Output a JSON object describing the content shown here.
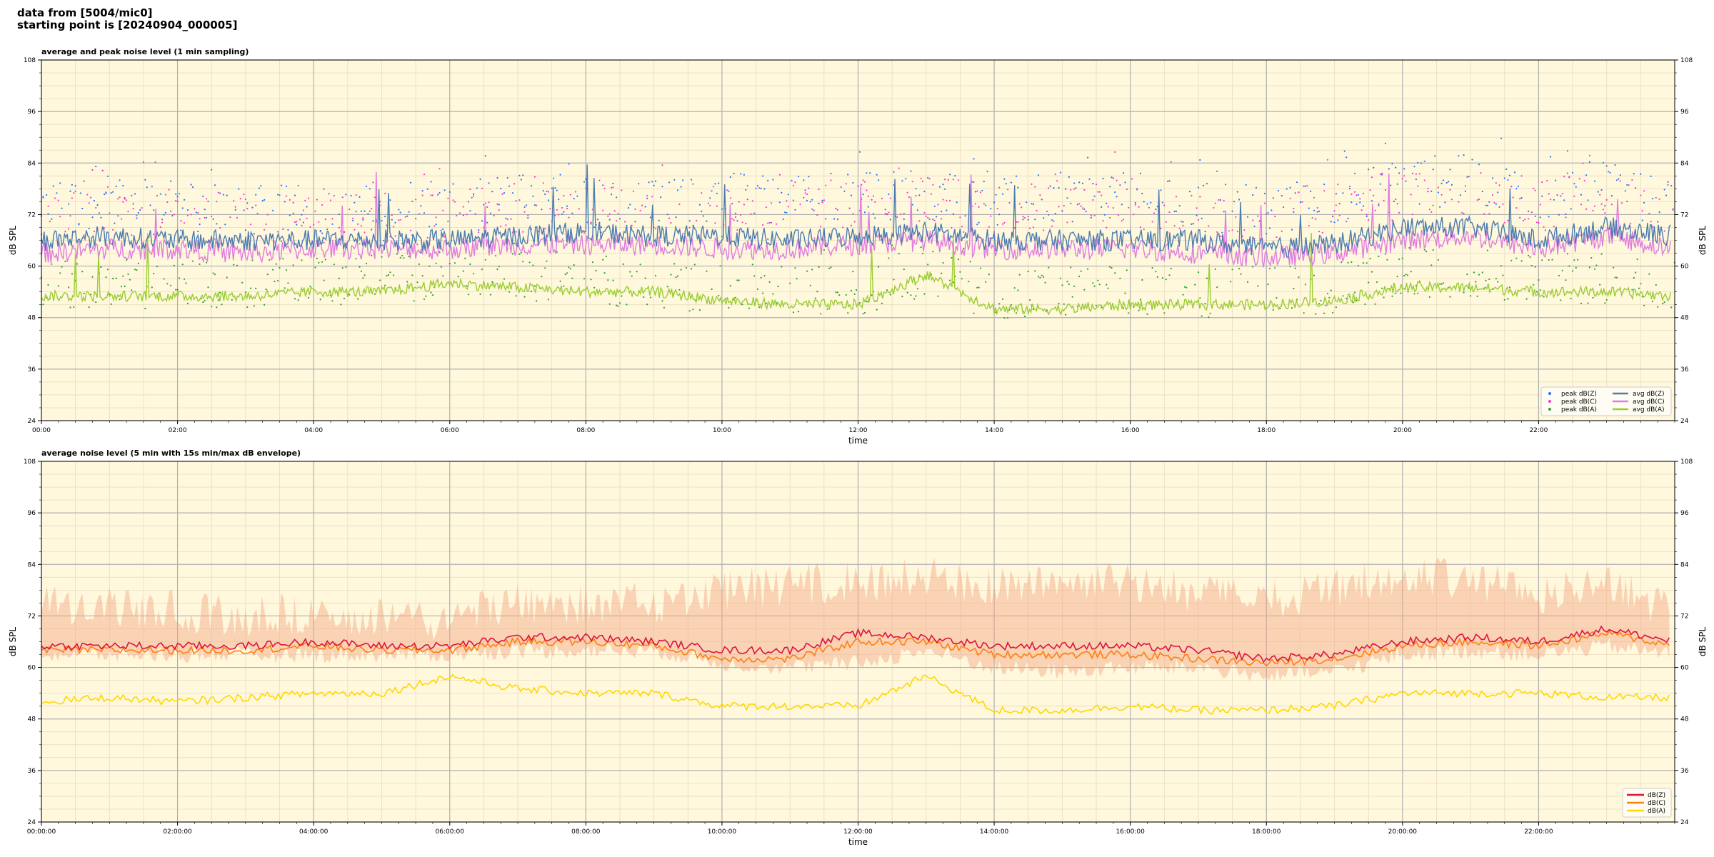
{
  "header": {
    "line1": "data from [5004/mic0]",
    "line2": "starting point is [20240904_000005]"
  },
  "colors": {
    "background": "#fff8dc",
    "peak_z": "#1f77ff",
    "peak_c": "#ff33cc",
    "peak_a": "#2ca02c",
    "avg_z": "#4a7bb0",
    "avg_c": "#e07be0",
    "avg_a": "#9acd32",
    "dbz": "#dc143c",
    "dbc": "#ff7f0e",
    "dba": "#ffd700",
    "envelope": "#f4a582"
  },
  "chart_data": [
    {
      "type": "line",
      "title": "average and peak noise level (1 min sampling)",
      "xlabel": "time",
      "ylabel": "dB SPL",
      "ylabel_right": "dB SPL",
      "xlim": [
        0,
        24
      ],
      "ylim": [
        24,
        108
      ],
      "yticks": [
        24,
        36,
        48,
        60,
        72,
        84,
        96,
        108
      ],
      "xticks": [
        0,
        2,
        4,
        6,
        8,
        10,
        12,
        14,
        16,
        18,
        20,
        22
      ],
      "xticklabels": [
        "00:00",
        "02:00",
        "04:00",
        "06:00",
        "08:00",
        "10:00",
        "12:00",
        "14:00",
        "16:00",
        "18:00",
        "20:00",
        "22:00"
      ],
      "grid": true,
      "legend_position": "bottom-right",
      "legend": [
        "peak dB(Z)",
        "peak dB(C)",
        "peak dB(A)",
        "avg dB(Z)",
        "avg dB(C)",
        "avg dB(A)"
      ],
      "series": [
        {
          "name": "avg dB(Z)",
          "kind": "line",
          "color": "#4a7bb0",
          "x": [
            0,
            1,
            2,
            3,
            4,
            5,
            6,
            7,
            8,
            9,
            10,
            11,
            12,
            13,
            14,
            15,
            16,
            17,
            18,
            19,
            20,
            21,
            22,
            23,
            24
          ],
          "y": [
            66,
            67,
            66,
            66,
            66,
            66,
            66,
            67,
            68,
            67,
            67,
            66,
            67,
            68,
            66,
            66,
            66,
            66,
            64,
            65,
            69,
            69,
            66,
            69,
            67
          ]
        },
        {
          "name": "avg dB(C)",
          "kind": "line",
          "color": "#e07be0",
          "x": [
            0,
            1,
            2,
            3,
            4,
            5,
            6,
            7,
            8,
            9,
            10,
            11,
            12,
            13,
            14,
            15,
            16,
            17,
            18,
            19,
            20,
            21,
            22,
            23,
            24
          ],
          "y": [
            63,
            64,
            64,
            63,
            64,
            64,
            64,
            65,
            65,
            65,
            64,
            64,
            65,
            66,
            64,
            64,
            64,
            63,
            62,
            63,
            66,
            67,
            64,
            67,
            64
          ]
        },
        {
          "name": "avg dB(A)",
          "kind": "line",
          "color": "#9acd32",
          "x": [
            0,
            1,
            2,
            3,
            4,
            5,
            6,
            7,
            8,
            9,
            10,
            11,
            12,
            13,
            14,
            15,
            16,
            17,
            18,
            19,
            20,
            21,
            22,
            23,
            24
          ],
          "y": [
            53,
            53,
            53,
            53,
            54,
            54,
            56,
            55,
            54,
            54,
            52,
            51,
            51,
            58,
            50,
            50,
            51,
            51,
            51,
            52,
            55,
            55,
            54,
            54,
            53
          ]
        },
        {
          "name": "peak dB(Z)",
          "kind": "scatter",
          "color": "#1f77ff",
          "x": [
            0,
            1,
            2,
            3,
            4,
            5,
            6,
            7,
            8,
            9,
            10,
            11,
            12,
            13,
            14,
            15,
            16,
            17,
            18,
            19,
            20,
            21,
            22,
            23,
            24
          ],
          "y": [
            74,
            75,
            74,
            73,
            73,
            73,
            73,
            76,
            75,
            74,
            76,
            76,
            76,
            77,
            75,
            76,
            77,
            74,
            73,
            76,
            79,
            80,
            76,
            79,
            73
          ]
        },
        {
          "name": "peak dB(C)",
          "kind": "scatter",
          "color": "#ff33cc",
          "x": [
            0,
            1,
            2,
            3,
            4,
            5,
            6,
            7,
            8,
            9,
            10,
            11,
            12,
            13,
            14,
            15,
            16,
            17,
            18,
            19,
            20,
            21,
            22,
            23,
            24
          ],
          "y": [
            72,
            73,
            72,
            71,
            71,
            71,
            71,
            74,
            73,
            72,
            74,
            74,
            74,
            75,
            73,
            74,
            75,
            72,
            71,
            74,
            77,
            78,
            74,
            77,
            71
          ]
        },
        {
          "name": "peak dB(A)",
          "kind": "scatter",
          "color": "#2ca02c",
          "x": [
            0,
            1,
            2,
            3,
            4,
            5,
            6,
            7,
            8,
            9,
            10,
            11,
            12,
            13,
            14,
            15,
            16,
            17,
            18,
            19,
            20,
            21,
            22,
            23,
            24
          ],
          "y": [
            56,
            56,
            56,
            56,
            57,
            57,
            58,
            58,
            57,
            56,
            55,
            54,
            54,
            59,
            53,
            54,
            54,
            54,
            54,
            55,
            58,
            58,
            57,
            57,
            56
          ]
        }
      ]
    },
    {
      "type": "line",
      "title": "average noise level (5 min with 15s min/max dB envelope)",
      "xlabel": "time",
      "ylabel": "dB SPL",
      "ylabel_right": "dB SPL",
      "xlim": [
        0,
        24
      ],
      "ylim": [
        24,
        108
      ],
      "yticks": [
        24,
        36,
        48,
        60,
        72,
        84,
        96,
        108
      ],
      "xticks": [
        0,
        2,
        4,
        6,
        8,
        10,
        12,
        14,
        16,
        18,
        20,
        22
      ],
      "xticklabels": [
        "00:00:00",
        "02:00:00",
        "04:00:00",
        "06:00:00",
        "08:00:00",
        "10:00:00",
        "12:00:00",
        "14:00:00",
        "16:00:00",
        "18:00:00",
        "20:00:00",
        "22:00:00"
      ],
      "grid": true,
      "legend_position": "bottom-right",
      "legend": [
        "dB(Z)",
        "dB(C)",
        "dB(A)"
      ],
      "envelope": {
        "x": [
          0,
          1,
          2,
          3,
          4,
          5,
          6,
          7,
          8,
          9,
          10,
          11,
          12,
          13,
          14,
          15,
          16,
          17,
          18,
          19,
          20,
          21,
          22,
          23,
          24
        ],
        "min": [
          61,
          61,
          61,
          61,
          61,
          61,
          61,
          62,
          62,
          62,
          59,
          58,
          59,
          62,
          58,
          57,
          58,
          58,
          56,
          57,
          61,
          62,
          61,
          63,
          61
        ],
        "max": [
          80,
          79,
          78,
          77,
          78,
          77,
          76,
          80,
          80,
          80,
          83,
          84,
          85,
          86,
          84,
          84,
          85,
          82,
          80,
          83,
          87,
          86,
          82,
          85,
          78
        ]
      },
      "series": [
        {
          "name": "dB(Z)",
          "color": "#dc143c",
          "x": [
            0,
            1,
            2,
            3,
            4,
            5,
            6,
            7,
            8,
            9,
            10,
            11,
            12,
            13,
            14,
            15,
            16,
            17,
            18,
            19,
            20,
            21,
            22,
            23,
            24
          ],
          "y": [
            65,
            65,
            65,
            65,
            66,
            65,
            65,
            67,
            67,
            66,
            64,
            64,
            68,
            67,
            65,
            65,
            65,
            64,
            62,
            63,
            66,
            67,
            66,
            69,
            66
          ]
        },
        {
          "name": "dB(C)",
          "color": "#ff7f0e",
          "x": [
            0,
            1,
            2,
            3,
            4,
            5,
            6,
            7,
            8,
            9,
            10,
            11,
            12,
            13,
            14,
            15,
            16,
            17,
            18,
            19,
            20,
            21,
            22,
            23,
            24
          ],
          "y": [
            64,
            64,
            64,
            64,
            65,
            64,
            64,
            66,
            66,
            65,
            62,
            62,
            66,
            66,
            63,
            63,
            63,
            62,
            61,
            62,
            65,
            66,
            65,
            68,
            65
          ]
        },
        {
          "name": "dB(A)",
          "color": "#ffd700",
          "x": [
            0,
            1,
            2,
            3,
            4,
            5,
            6,
            7,
            8,
            9,
            10,
            11,
            12,
            13,
            14,
            15,
            16,
            17,
            18,
            19,
            20,
            21,
            22,
            23,
            24
          ],
          "y": [
            52,
            53,
            52,
            53,
            54,
            54,
            58,
            55,
            54,
            54,
            51,
            51,
            51,
            58,
            50,
            50,
            51,
            50,
            50,
            51,
            54,
            54,
            54,
            53,
            53
          ]
        }
      ]
    }
  ]
}
